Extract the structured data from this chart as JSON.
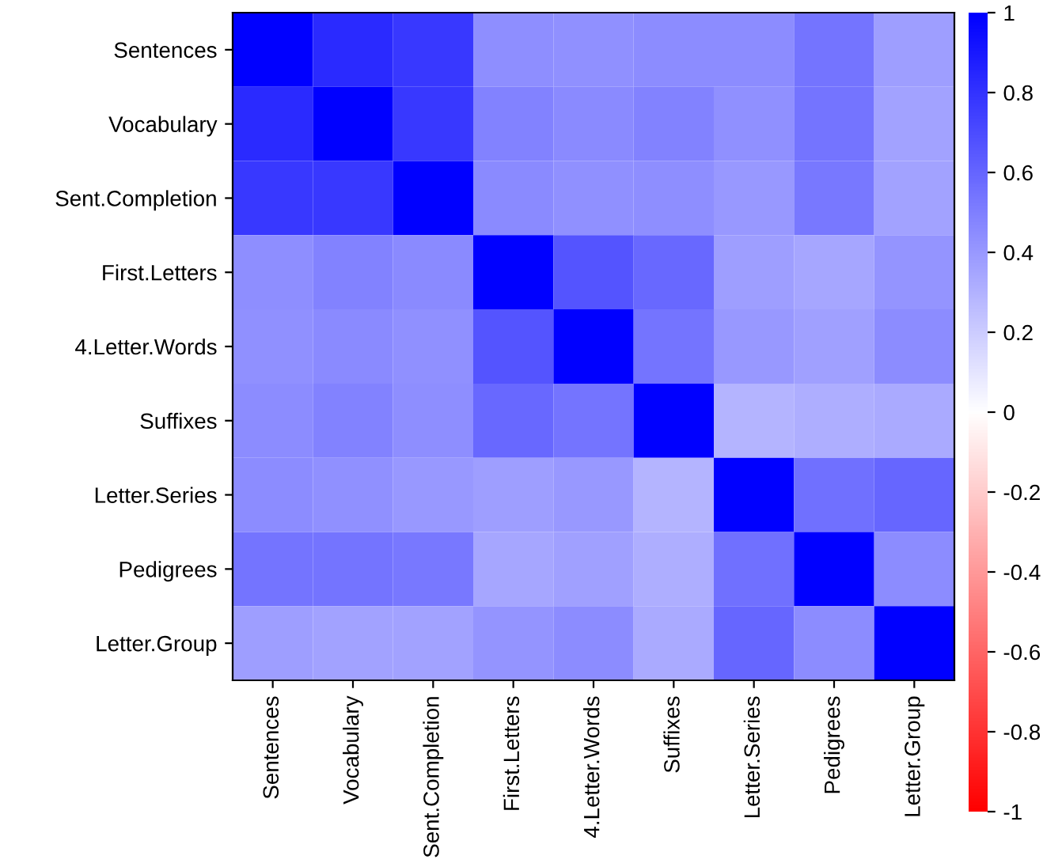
{
  "chart_data": {
    "type": "heatmap",
    "categories": [
      "Sentences",
      "Vocabulary",
      "Sent.Completion",
      "First.Letters",
      "4.Letter.Words",
      "Suffixes",
      "Letter.Series",
      "Pedigrees",
      "Letter.Group"
    ],
    "y_categories": [
      "Sentences",
      "Vocabulary",
      "Sent.Completion",
      "First.Letters",
      "4.Letter.Words",
      "Suffixes",
      "Letter.Series",
      "Pedigrees",
      "Letter.Group"
    ],
    "cells": [
      [
        1,
        0.83,
        0.78,
        0.44,
        0.43,
        0.45,
        0.45,
        0.54,
        0.38
      ],
      [
        0.83,
        1,
        0.78,
        0.49,
        0.46,
        0.49,
        0.43,
        0.54,
        0.36
      ],
      [
        0.78,
        0.78,
        1,
        0.46,
        0.43,
        0.44,
        0.4,
        0.53,
        0.36
      ],
      [
        0.44,
        0.49,
        0.46,
        1,
        0.67,
        0.59,
        0.38,
        0.35,
        0.42
      ],
      [
        0.43,
        0.46,
        0.43,
        0.67,
        1,
        0.54,
        0.4,
        0.37,
        0.45
      ],
      [
        0.45,
        0.49,
        0.44,
        0.59,
        0.54,
        1,
        0.29,
        0.32,
        0.33
      ],
      [
        0.45,
        0.43,
        0.4,
        0.38,
        0.4,
        0.29,
        1,
        0.56,
        0.6
      ],
      [
        0.54,
        0.54,
        0.53,
        0.35,
        0.37,
        0.32,
        0.56,
        1,
        0.45
      ],
      [
        0.38,
        0.36,
        0.36,
        0.42,
        0.45,
        0.33,
        0.6,
        0.45,
        1
      ]
    ],
    "clim": [
      -1,
      1
    ],
    "cticks": [
      -1,
      -0.8,
      -0.6,
      -0.4,
      -0.2,
      0,
      0.2,
      0.4,
      0.6,
      0.8,
      1
    ],
    "grid": false
  }
}
